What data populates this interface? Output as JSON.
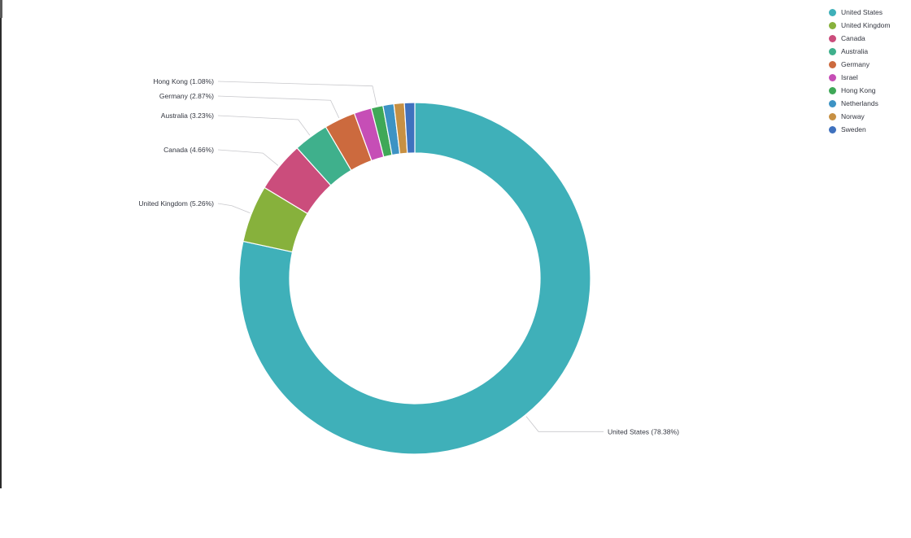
{
  "chart_data": {
    "type": "pie",
    "donut": true,
    "slices": [
      {
        "label": "United States",
        "percent": 78.38,
        "color": "#3FB0B9",
        "label_text": "United States (78.38%)"
      },
      {
        "label": "United Kingdom",
        "percent": 5.26,
        "color": "#87B13C",
        "label_text": "United Kingdom (5.26%)"
      },
      {
        "label": "Canada",
        "percent": 4.66,
        "color": "#CB4D7C",
        "label_text": "Canada (4.66%)"
      },
      {
        "label": "Australia",
        "percent": 3.23,
        "color": "#3FB08C",
        "label_text": "Australia (3.23%)"
      },
      {
        "label": "Germany",
        "percent": 2.87,
        "color": "#CC6A3E",
        "label_text": "Germany (2.87%)"
      },
      {
        "label": "Israel",
        "percent": 1.61,
        "color": "#C64EB6",
        "label_text": ""
      },
      {
        "label": "Hong Kong",
        "percent": 1.08,
        "color": "#3FA857",
        "label_text": "Hong Kong (1.08%)"
      },
      {
        "label": "Netherlands",
        "percent": 1.0,
        "color": "#3D93C4",
        "label_text": ""
      },
      {
        "label": "Norway",
        "percent": 0.96,
        "color": "#C79043",
        "label_text": ""
      },
      {
        "label": "Sweden",
        "percent": 0.95,
        "color": "#3F71BE",
        "label_text": ""
      }
    ],
    "legend_position": "top-right",
    "legend": [
      "United States",
      "United Kingdom",
      "Canada",
      "Australia",
      "Germany",
      "Israel",
      "Hong Kong",
      "Netherlands",
      "Norway",
      "Sweden"
    ]
  }
}
